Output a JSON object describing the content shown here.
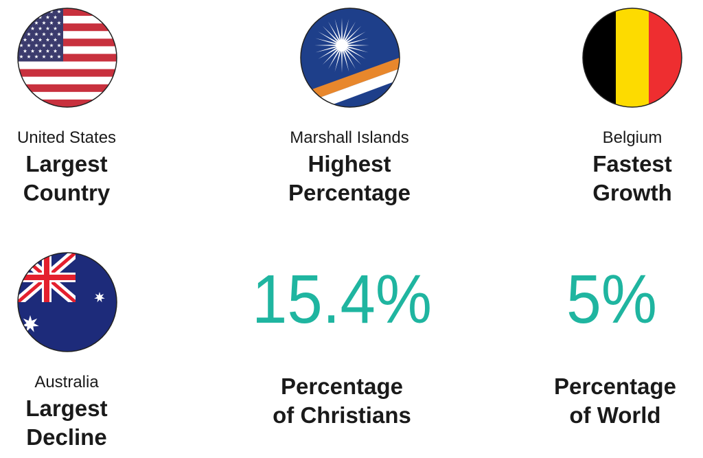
{
  "items": [
    {
      "country": "United States",
      "label": [
        "Largest",
        "Country"
      ]
    },
    {
      "country": "Marshall Islands",
      "label": [
        "Highest",
        "Percentage"
      ]
    },
    {
      "country": "Belgium",
      "label": [
        "Fastest",
        "Growth"
      ]
    },
    {
      "country": "Australia",
      "label": [
        "Largest",
        "Decline"
      ]
    }
  ],
  "stats": [
    {
      "value": "15.4%",
      "label": [
        "Percentage",
        "of Christians"
      ]
    },
    {
      "value": "5%",
      "label": [
        "Percentage",
        "of World"
      ]
    }
  ]
}
